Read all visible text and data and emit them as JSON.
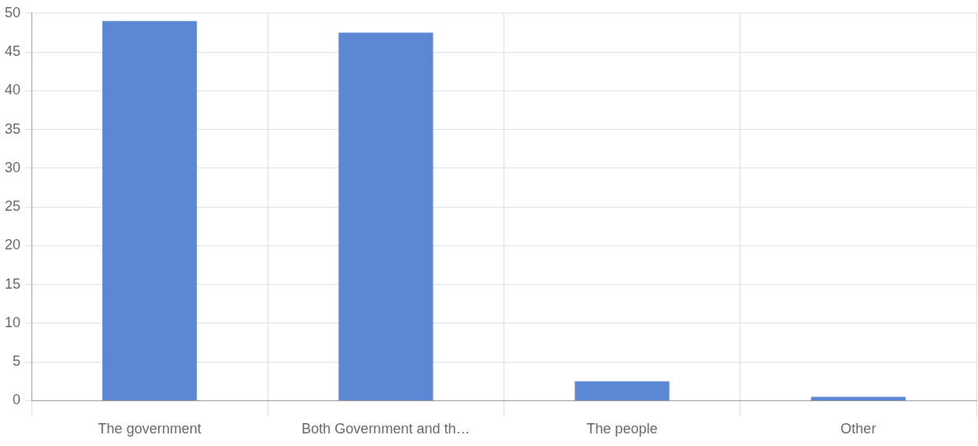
{
  "chart_data": {
    "type": "bar",
    "categories": [
      "The government",
      "Both Government and th…",
      "The people",
      "Other"
    ],
    "values": [
      49,
      47.5,
      2.5,
      0.5
    ],
    "color": "#5b87d3",
    "ylim": [
      0,
      50
    ],
    "yticks": [
      0,
      5,
      10,
      15,
      20,
      25,
      30,
      35,
      40,
      45,
      50
    ],
    "grid": true,
    "legend": false
  }
}
